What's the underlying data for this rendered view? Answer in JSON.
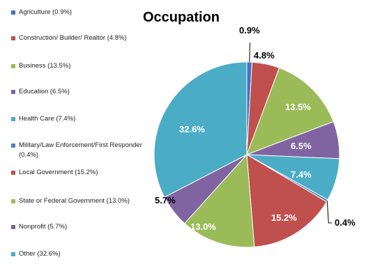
{
  "chart_data": {
    "type": "pie",
    "title": "Occupation",
    "categories": [
      "Agriculture",
      "Construction/Builder/Realtor",
      "Business",
      "Education",
      "Health Care",
      "Military/Law Enforcement/First Responder",
      "Local Government",
      "State or Federal Government",
      "Nonprofit",
      "Other"
    ],
    "values": [
      0.9,
      4.8,
      13.5,
      6.5,
      7.4,
      0.4,
      15.2,
      13.0,
      5.7,
      32.6
    ],
    "colors": [
      "#4472c4",
      "#c0504d",
      "#9bbb59",
      "#8064a2",
      "#4bacc6",
      "#4f81bd",
      "#c0504d",
      "#9bbb59",
      "#8064a2",
      "#4bacc6"
    ],
    "legend": {
      "position": "left",
      "entries": [
        "Agriculture (0.9%)",
        "Construction/ Builder/ Realtor (4.8%)",
        "Business (13.5%)",
        "Education (6.5%)",
        "Health Care (7.4%)",
        "Military/Law Enforcement/First Responder (0.4%)",
        "Local Government (15.2%)",
        "State or Federal Government (13.0%)",
        "Nonprofit (5.7%)",
        "Other (32.6%)"
      ]
    },
    "data_labels": [
      "0.9%",
      "4.8%",
      "13.5%",
      "6.5%",
      "7.4%",
      "0.4%",
      "15.2%",
      "13.0%",
      "5.7%",
      "32.6%"
    ]
  }
}
